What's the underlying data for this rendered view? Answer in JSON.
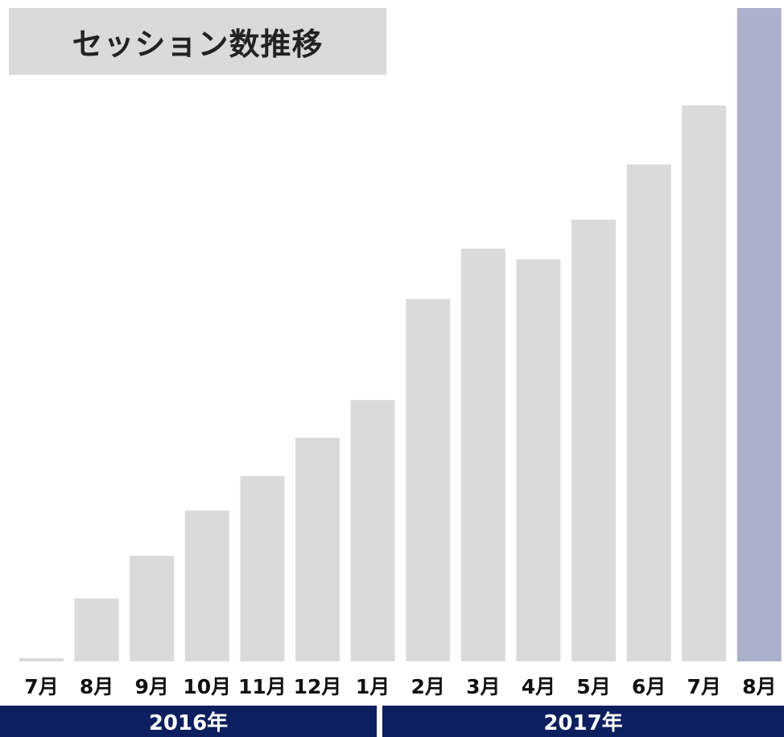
{
  "title": "セッション数推移",
  "colors": {
    "bar": "#dadada",
    "bar_highlight": "#abb0cb",
    "year_band": "#0d1f5e",
    "title_bg": "#dadada"
  },
  "chart_data": {
    "type": "bar",
    "title": "セッション数推移",
    "categories": [
      "7月",
      "8月",
      "9月",
      "10月",
      "11月",
      "12月",
      "1月",
      "2月",
      "3月",
      "4月",
      "5月",
      "6月",
      "7月",
      "8月"
    ],
    "values": [
      0.5,
      10,
      16.8,
      24,
      29.5,
      35.6,
      41.6,
      57.7,
      65.7,
      64,
      70.3,
      79.1,
      88.5,
      104
    ],
    "highlight_index": 13,
    "ylim": [
      0,
      104
    ],
    "grid": false,
    "xlabel": "",
    "ylabel": "",
    "year_groups": [
      {
        "label": "2016年",
        "start": 0,
        "end": 5
      },
      {
        "label": "2017年",
        "start": 6,
        "end": 13
      }
    ]
  }
}
